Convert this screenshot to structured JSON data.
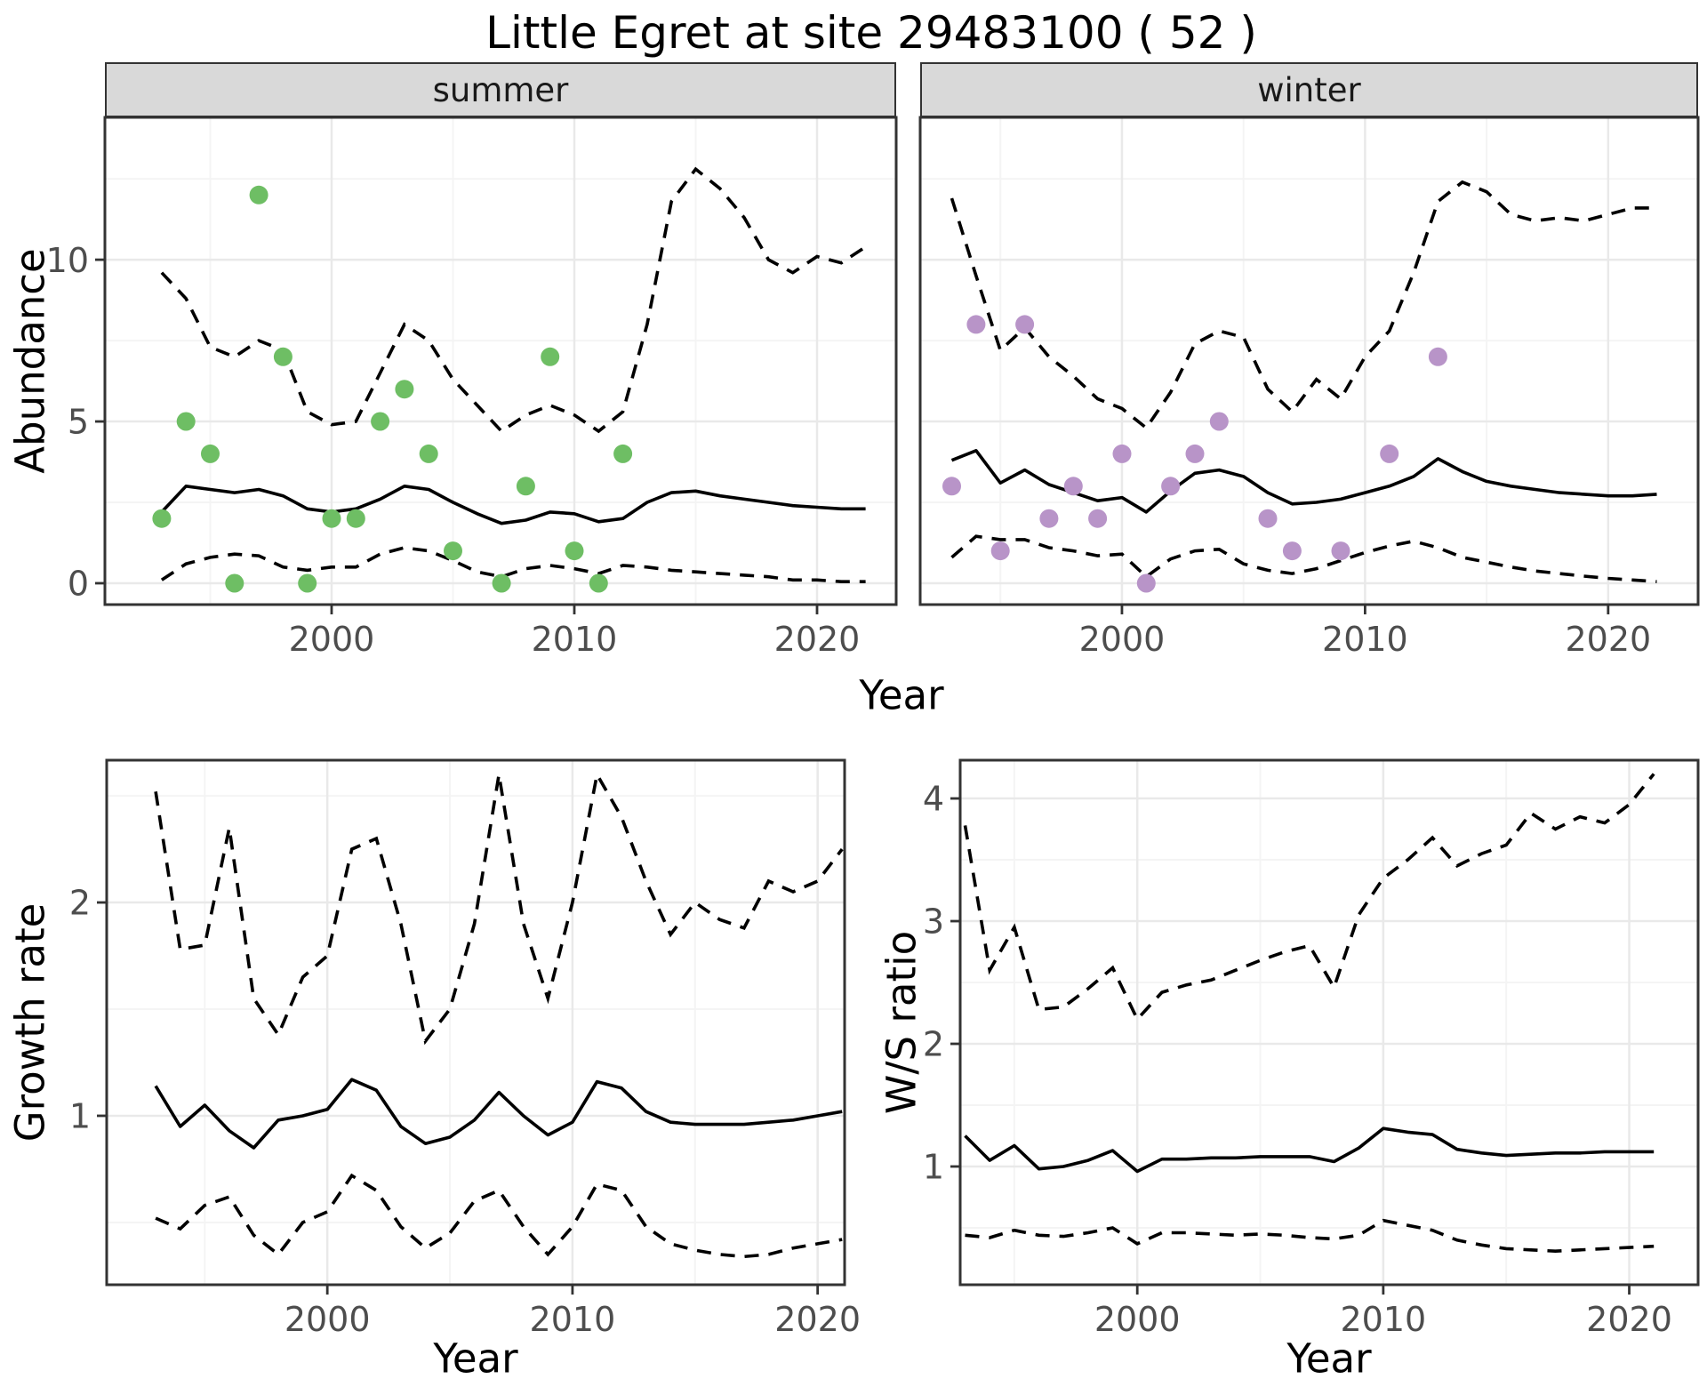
{
  "title": "Little Egret at site 29483100 ( 52 )",
  "colors": {
    "summer_point": "#6EBE64",
    "winter_point": "#B894C8",
    "median_line": "#000000",
    "ci_line": "#000000",
    "strip_bg": "#D9D9D9",
    "strip_border": "#333333",
    "panel_border": "#333333",
    "grid_major": "#E9E9E9",
    "grid_minor": "#F4F4F4",
    "tick_mark": "#333333",
    "tick_label": "#4D4D4D"
  },
  "chart_data": [
    {
      "type": "scatter",
      "facet_label": "summer",
      "xlabel": "Year",
      "ylabel": "Abundance",
      "xlim": [
        1990.66,
        2023.26
      ],
      "ylim": [
        -0.66,
        14.4
      ],
      "x_ticks": [
        2000,
        2010,
        2020
      ],
      "x_minor": [
        1995,
        2005,
        2015
      ],
      "y_ticks": [
        0,
        5,
        10
      ],
      "y_minor": [
        2.5,
        7.5,
        12.5
      ],
      "years": [
        1993,
        1994,
        1995,
        1996,
        1997,
        1998,
        1999,
        2000,
        2001,
        2002,
        2003,
        2004,
        2005,
        2006,
        2007,
        2008,
        2009,
        2010,
        2011,
        2012,
        2013,
        2014,
        2015,
        2016,
        2017,
        2018,
        2019,
        2020,
        2021,
        2022
      ],
      "median": [
        2.2,
        3.0,
        2.9,
        2.8,
        2.9,
        2.7,
        2.3,
        2.2,
        2.3,
        2.6,
        3.0,
        2.9,
        2.5,
        2.15,
        1.85,
        1.95,
        2.2,
        2.15,
        1.9,
        2.0,
        2.5,
        2.8,
        2.85,
        2.7,
        2.6,
        2.5,
        2.4,
        2.35,
        2.3,
        2.3
      ],
      "upper": [
        9.6,
        8.8,
        7.3,
        7.0,
        7.5,
        7.2,
        5.3,
        4.9,
        5.0,
        6.5,
        8.0,
        7.5,
        6.3,
        5.5,
        4.7,
        5.2,
        5.5,
        5.2,
        4.7,
        5.3,
        8.0,
        11.8,
        12.8,
        12.2,
        11.3,
        10.0,
        9.6,
        10.1,
        9.9,
        10.4
      ],
      "lower": [
        0.1,
        0.6,
        0.8,
        0.9,
        0.85,
        0.5,
        0.4,
        0.5,
        0.5,
        0.9,
        1.1,
        1.0,
        0.7,
        0.35,
        0.2,
        0.45,
        0.55,
        0.45,
        0.3,
        0.55,
        0.5,
        0.4,
        0.35,
        0.3,
        0.25,
        0.2,
        0.1,
        0.1,
        0.05,
        0.05
      ],
      "points": [
        [
          1993,
          2
        ],
        [
          1994,
          5
        ],
        [
          1995,
          4
        ],
        [
          1996,
          0
        ],
        [
          1997,
          12
        ],
        [
          1998,
          7
        ],
        [
          1999,
          0
        ],
        [
          2000,
          2
        ],
        [
          2001,
          2
        ],
        [
          2002,
          5
        ],
        [
          2003,
          6
        ],
        [
          2004,
          4
        ],
        [
          2005,
          1
        ],
        [
          2007,
          0
        ],
        [
          2008,
          3
        ],
        [
          2009,
          7
        ],
        [
          2010,
          1
        ],
        [
          2011,
          0
        ],
        [
          2012,
          4
        ]
      ],
      "point_color_key": "summer_point",
      "legend_position": "none"
    },
    {
      "type": "scatter",
      "facet_label": "winter",
      "xlabel": "Year",
      "ylabel": "Abundance",
      "xlim": [
        1991.7,
        2023.7
      ],
      "ylim": [
        -0.66,
        14.4
      ],
      "x_ticks": [
        2000,
        2010,
        2020
      ],
      "x_minor": [
        1995,
        2005,
        2015
      ],
      "y_ticks": [
        0,
        5,
        10
      ],
      "y_minor": [
        2.5,
        7.5,
        12.5
      ],
      "years": [
        1993,
        1994,
        1995,
        1996,
        1997,
        1998,
        1999,
        2000,
        2001,
        2002,
        2003,
        2004,
        2005,
        2006,
        2007,
        2008,
        2009,
        2010,
        2011,
        2012,
        2013,
        2014,
        2015,
        2016,
        2017,
        2018,
        2019,
        2020,
        2021,
        2022
      ],
      "median": [
        3.8,
        4.1,
        3.1,
        3.5,
        3.05,
        2.8,
        2.55,
        2.65,
        2.2,
        2.85,
        3.4,
        3.5,
        3.3,
        2.8,
        2.45,
        2.5,
        2.6,
        2.8,
        3.0,
        3.3,
        3.85,
        3.45,
        3.15,
        3.0,
        2.9,
        2.8,
        2.75,
        2.7,
        2.7,
        2.75
      ],
      "upper": [
        11.9,
        9.5,
        7.2,
        7.9,
        7.0,
        6.4,
        5.7,
        5.4,
        4.8,
        5.9,
        7.4,
        7.8,
        7.6,
        6.0,
        5.3,
        6.3,
        5.7,
        7.0,
        7.8,
        9.6,
        11.8,
        12.4,
        12.1,
        11.4,
        11.2,
        11.3,
        11.2,
        11.4,
        11.6,
        11.6
      ],
      "lower": [
        0.8,
        1.45,
        1.35,
        1.35,
        1.1,
        1.0,
        0.85,
        0.9,
        0.2,
        0.75,
        1.0,
        1.05,
        0.6,
        0.4,
        0.3,
        0.45,
        0.7,
        0.95,
        1.15,
        1.3,
        1.1,
        0.8,
        0.65,
        0.5,
        0.38,
        0.3,
        0.22,
        0.15,
        0.1,
        0.05
      ],
      "points": [
        [
          1993,
          3
        ],
        [
          1994,
          8
        ],
        [
          1995,
          1
        ],
        [
          1996,
          8
        ],
        [
          1997,
          2
        ],
        [
          1998,
          3
        ],
        [
          1999,
          2
        ],
        [
          2000,
          4
        ],
        [
          2001,
          0
        ],
        [
          2002,
          3
        ],
        [
          2003,
          4
        ],
        [
          2004,
          5
        ],
        [
          2006,
          2
        ],
        [
          2007,
          1
        ],
        [
          2009,
          1
        ],
        [
          2011,
          4
        ],
        [
          2013,
          7
        ]
      ],
      "point_color_key": "winter_point",
      "legend_position": "none"
    },
    {
      "type": "line",
      "facet_label": "",
      "xlabel": "Year",
      "ylabel": "Growth rate",
      "xlim": [
        1991.0,
        2021.1
      ],
      "ylim": [
        0.208,
        2.667
      ],
      "x_ticks": [
        2000,
        2010,
        2020
      ],
      "x_minor": [
        1995,
        2005,
        2015
      ],
      "y_ticks": [
        1,
        2
      ],
      "y_minor": [
        0.5,
        1.5,
        2.5
      ],
      "years": [
        1993,
        1994,
        1995,
        1996,
        1997,
        1998,
        1999,
        2000,
        2001,
        2002,
        2003,
        2004,
        2005,
        2006,
        2007,
        2008,
        2009,
        2010,
        2011,
        2012,
        2013,
        2014,
        2015,
        2016,
        2017,
        2018,
        2019,
        2020,
        2021
      ],
      "median": [
        1.14,
        0.95,
        1.05,
        0.93,
        0.85,
        0.98,
        1.0,
        1.03,
        1.17,
        1.12,
        0.95,
        0.87,
        0.9,
        0.98,
        1.11,
        1.0,
        0.91,
        0.97,
        1.16,
        1.13,
        1.02,
        0.97,
        0.96,
        0.96,
        0.96,
        0.97,
        0.98,
        1.0,
        1.02
      ],
      "upper": [
        2.52,
        1.78,
        1.8,
        2.35,
        1.55,
        1.38,
        1.65,
        1.75,
        2.25,
        2.3,
        1.9,
        1.35,
        1.5,
        1.9,
        2.6,
        1.9,
        1.55,
        2.0,
        2.6,
        2.4,
        2.1,
        1.85,
        2.0,
        1.92,
        1.88,
        2.1,
        2.05,
        2.1,
        2.25
      ],
      "lower": [
        0.52,
        0.47,
        0.58,
        0.62,
        0.44,
        0.35,
        0.5,
        0.55,
        0.72,
        0.65,
        0.48,
        0.38,
        0.45,
        0.6,
        0.65,
        0.48,
        0.35,
        0.48,
        0.68,
        0.65,
        0.48,
        0.4,
        0.37,
        0.35,
        0.34,
        0.35,
        0.38,
        0.4,
        0.42
      ],
      "points": [],
      "point_color_key": "median_line",
      "legend_position": "none"
    },
    {
      "type": "line",
      "facet_label": "",
      "xlabel": "Year",
      "ylabel": "W/S ratio",
      "xlim": [
        1992.8,
        2022.8
      ],
      "ylim": [
        0.036,
        4.312
      ],
      "x_ticks": [
        2000,
        2010,
        2020
      ],
      "x_minor": [
        1995,
        2005,
        2015
      ],
      "y_ticks": [
        1,
        2,
        3,
        4
      ],
      "y_minor": [
        0.5,
        1.5,
        2.5,
        3.5
      ],
      "years": [
        1993,
        1994,
        1995,
        1996,
        1997,
        1998,
        1999,
        2000,
        2001,
        2002,
        2003,
        2004,
        2005,
        2006,
        2007,
        2008,
        2009,
        2010,
        2011,
        2012,
        2013,
        2014,
        2015,
        2016,
        2017,
        2018,
        2019,
        2020,
        2021
      ],
      "median": [
        1.25,
        1.05,
        1.17,
        0.98,
        1.0,
        1.05,
        1.13,
        0.96,
        1.06,
        1.06,
        1.07,
        1.07,
        1.08,
        1.08,
        1.08,
        1.04,
        1.15,
        1.31,
        1.28,
        1.26,
        1.14,
        1.11,
        1.09,
        1.1,
        1.11,
        1.11,
        1.12,
        1.12,
        1.12
      ],
      "upper": [
        3.78,
        2.6,
        2.95,
        2.28,
        2.3,
        2.45,
        2.62,
        2.2,
        2.42,
        2.48,
        2.52,
        2.6,
        2.68,
        2.75,
        2.8,
        2.46,
        3.05,
        3.35,
        3.5,
        3.68,
        3.45,
        3.55,
        3.62,
        3.88,
        3.75,
        3.85,
        3.8,
        3.95,
        4.2
      ],
      "lower": [
        0.44,
        0.42,
        0.48,
        0.44,
        0.43,
        0.46,
        0.5,
        0.37,
        0.46,
        0.46,
        0.45,
        0.44,
        0.45,
        0.44,
        0.42,
        0.41,
        0.44,
        0.56,
        0.52,
        0.48,
        0.4,
        0.36,
        0.33,
        0.32,
        0.31,
        0.32,
        0.33,
        0.34,
        0.35
      ],
      "points": [],
      "point_color_key": "median_line",
      "legend_position": "none"
    }
  ]
}
